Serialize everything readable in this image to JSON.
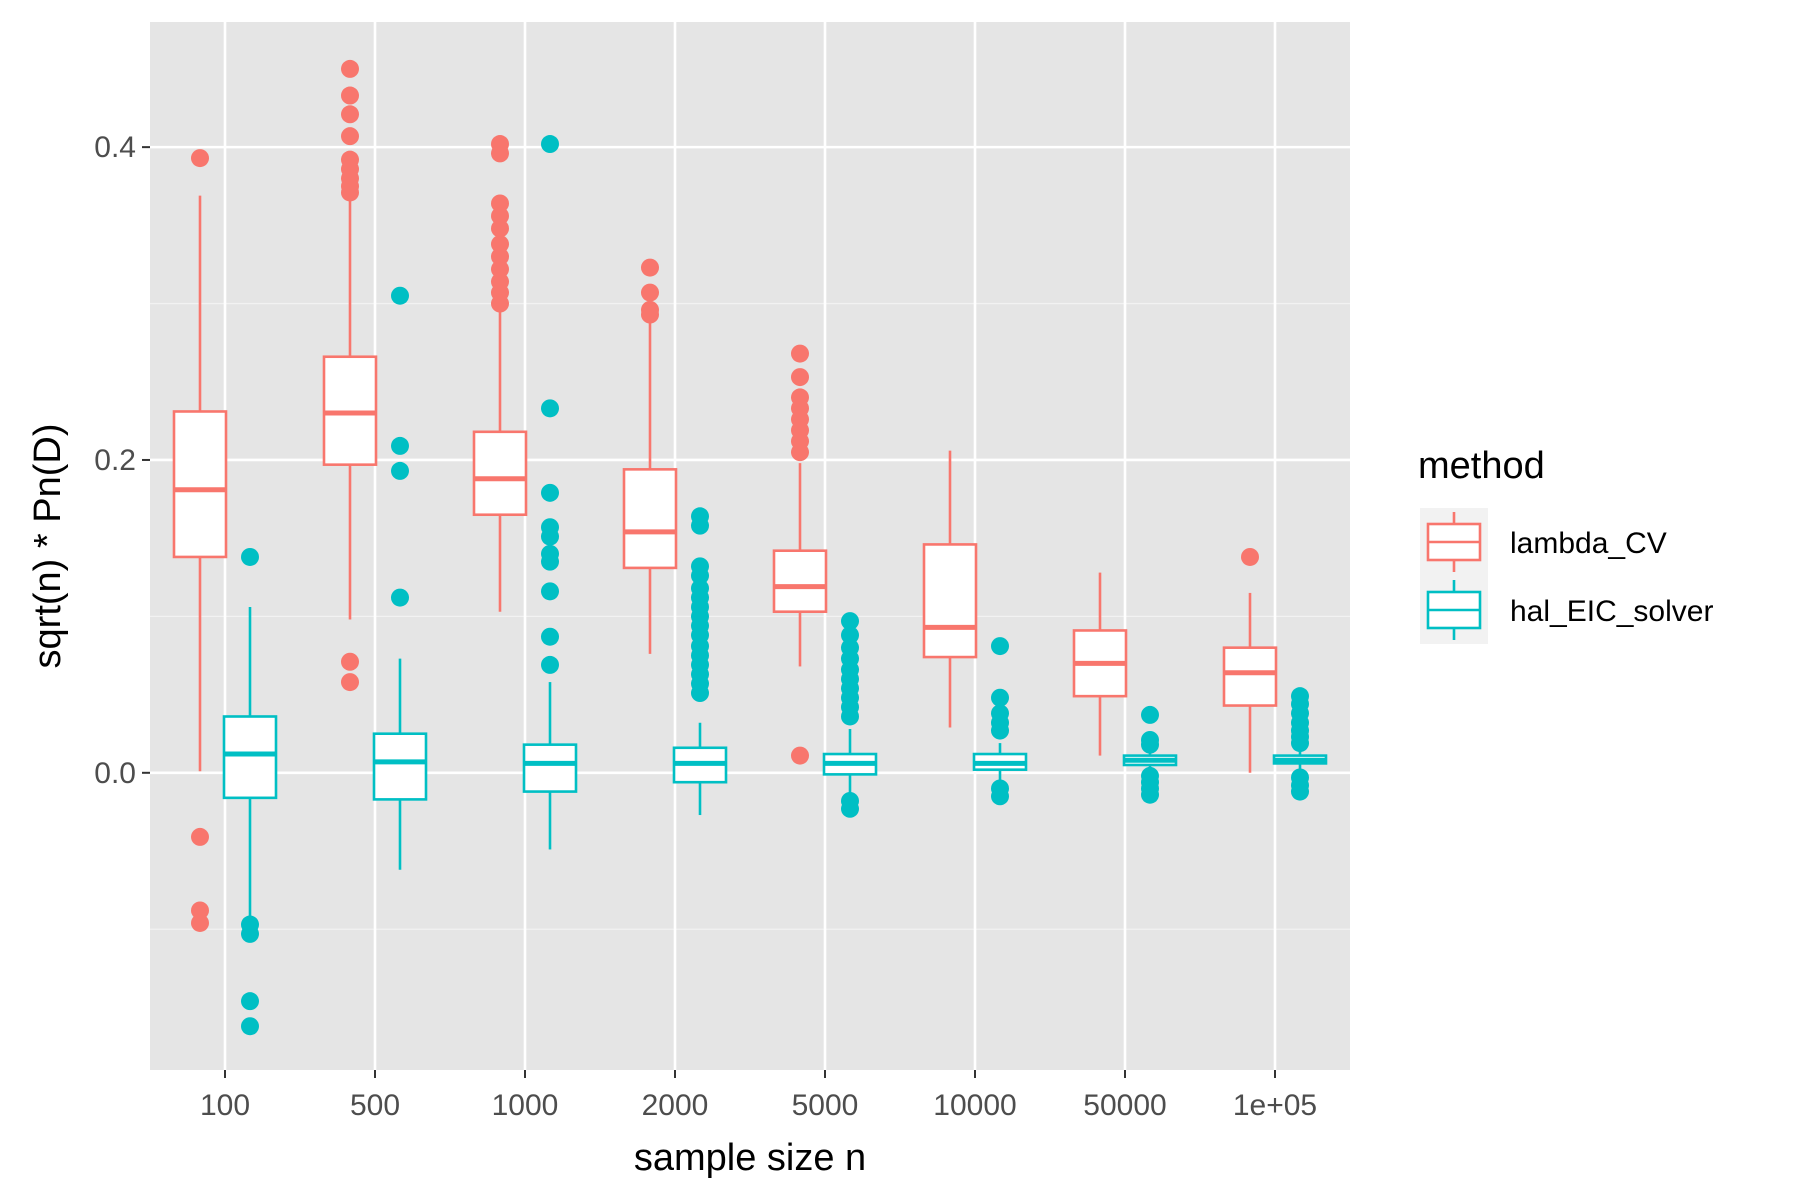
{
  "chart_data": {
    "type": "boxplot",
    "title": "",
    "xlabel": "sample size n",
    "ylabel": "sqrt(n) * Pn(D)",
    "ylim": [
      -0.19,
      0.48
    ],
    "y_ticks": [
      0.0,
      0.2,
      0.4
    ],
    "y_tick_labels": [
      "0.0",
      "0.2",
      "0.4"
    ],
    "categories": [
      "100",
      "500",
      "1000",
      "2000",
      "5000",
      "10000",
      "50000",
      "1e+05"
    ],
    "legend": {
      "title": "method",
      "position": "right",
      "entries": [
        "lambda_CV",
        "hal_EIC_solver"
      ]
    },
    "colors": {
      "lambda_CV": "#F8766D",
      "hal_EIC_solver": "#00BFC4"
    },
    "series": [
      {
        "name": "lambda_CV",
        "boxes": [
          {
            "category": "100",
            "q1": 0.138,
            "median": 0.181,
            "q3": 0.231,
            "whisker_low": 0.001,
            "whisker_high": 0.369,
            "outliers": [
              0.393,
              -0.041,
              -0.088,
              -0.096
            ]
          },
          {
            "category": "500",
            "q1": 0.197,
            "median": 0.23,
            "q3": 0.266,
            "whisker_low": 0.098,
            "whisker_high": 0.369,
            "outliers": [
              0.45,
              0.433,
              0.421,
              0.407,
              0.392,
              0.386,
              0.38,
              0.375,
              0.371,
              0.071,
              0.058
            ]
          },
          {
            "category": "1000",
            "q1": 0.165,
            "median": 0.188,
            "q3": 0.218,
            "whisker_low": 0.103,
            "whisker_high": 0.296,
            "outliers": [
              0.402,
              0.396,
              0.364,
              0.356,
              0.348,
              0.338,
              0.33,
              0.322,
              0.314,
              0.307,
              0.3
            ]
          },
          {
            "category": "2000",
            "q1": 0.131,
            "median": 0.154,
            "q3": 0.194,
            "whisker_low": 0.076,
            "whisker_high": 0.29,
            "outliers": [
              0.323,
              0.307,
              0.296,
              0.293
            ]
          },
          {
            "category": "5000",
            "q1": 0.103,
            "median": 0.119,
            "q3": 0.142,
            "whisker_low": 0.068,
            "whisker_high": 0.198,
            "outliers": [
              0.268,
              0.253,
              0.24,
              0.233,
              0.226,
              0.219,
              0.212,
              0.205,
              0.011
            ]
          },
          {
            "category": "10000",
            "q1": 0.074,
            "median": 0.093,
            "q3": 0.146,
            "whisker_low": 0.029,
            "whisker_high": 0.206,
            "outliers": []
          },
          {
            "category": "50000",
            "q1": 0.049,
            "median": 0.07,
            "q3": 0.091,
            "whisker_low": 0.011,
            "whisker_high": 0.128,
            "outliers": []
          },
          {
            "category": "1e+05",
            "q1": 0.043,
            "median": 0.064,
            "q3": 0.08,
            "whisker_low": 0.0,
            "whisker_high": 0.115,
            "outliers": [
              0.138
            ]
          }
        ]
      },
      {
        "name": "hal_EIC_solver",
        "boxes": [
          {
            "category": "100",
            "q1": -0.016,
            "median": 0.012,
            "q3": 0.036,
            "whisker_low": -0.093,
            "whisker_high": 0.106,
            "outliers": [
              0.138,
              -0.097,
              -0.103,
              -0.146,
              -0.162
            ]
          },
          {
            "category": "500",
            "q1": -0.017,
            "median": 0.007,
            "q3": 0.025,
            "whisker_low": -0.062,
            "whisker_high": 0.073,
            "outliers": [
              0.305,
              0.209,
              0.193,
              0.112
            ]
          },
          {
            "category": "1000",
            "q1": -0.012,
            "median": 0.006,
            "q3": 0.018,
            "whisker_low": -0.049,
            "whisker_high": 0.058,
            "outliers": [
              0.402,
              0.233,
              0.179,
              0.157,
              0.151,
              0.14,
              0.135,
              0.116,
              0.087,
              0.069
            ]
          },
          {
            "category": "2000",
            "q1": -0.006,
            "median": 0.006,
            "q3": 0.016,
            "whisker_low": -0.027,
            "whisker_high": 0.032,
            "outliers": [
              0.164,
              0.158,
              0.132,
              0.126,
              0.118,
              0.112,
              0.106,
              0.1,
              0.094,
              0.088,
              0.081,
              0.075,
              0.069,
              0.063,
              0.057,
              0.051
            ]
          },
          {
            "category": "5000",
            "q1": -0.001,
            "median": 0.006,
            "q3": 0.012,
            "whisker_low": -0.013,
            "whisker_high": 0.028,
            "outliers": [
              0.097,
              0.088,
              0.08,
              0.073,
              0.066,
              0.06,
              0.054,
              0.048,
              0.042,
              0.036,
              -0.018,
              -0.023
            ]
          },
          {
            "category": "10000",
            "q1": 0.002,
            "median": 0.006,
            "q3": 0.012,
            "whisker_low": -0.007,
            "whisker_high": 0.019,
            "outliers": [
              0.081,
              0.048,
              0.038,
              0.032,
              0.027,
              -0.01,
              -0.015
            ]
          },
          {
            "category": "50000",
            "q1": 0.005,
            "median": 0.008,
            "q3": 0.011,
            "whisker_low": 0.001,
            "whisker_high": 0.016,
            "outliers": [
              0.037,
              0.021,
              0.018,
              -0.002,
              -0.006,
              -0.01,
              -0.014
            ]
          },
          {
            "category": "1e+05",
            "q1": 0.006,
            "median": 0.008,
            "q3": 0.011,
            "whisker_low": 0.002,
            "whisker_high": 0.014,
            "outliers": [
              0.049,
              0.044,
              0.038,
              0.032,
              0.027,
              0.023,
              0.019,
              -0.003,
              -0.008,
              -0.012
            ]
          }
        ]
      }
    ]
  }
}
